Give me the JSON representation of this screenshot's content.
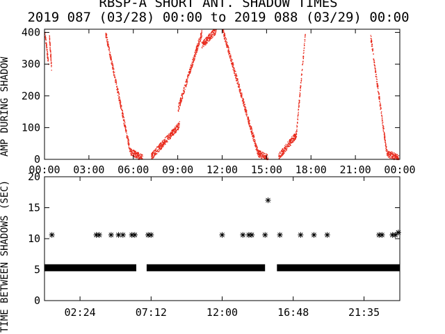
{
  "title_line1": "RBSP-A SHORT ANT. SHADOW TIMES",
  "title_line2": "2019 087 (03/28) 00:00 to 2019 088 (03/29) 00:00",
  "colors": {
    "top_points": "#e8281a",
    "bottom_points": "#000000",
    "axes": "#000000"
  },
  "chart_data": [
    {
      "type": "scatter",
      "ylabel": "AMP DURING SHADOW",
      "ylim": [
        0,
        410
      ],
      "xlim_hours": [
        0,
        24
      ],
      "xticks": [
        "00:00",
        "03:00",
        "06:00",
        "09:00",
        "12:00",
        "15:00",
        "18:00",
        "21:00",
        "00:00"
      ],
      "yticks": [
        "0",
        "100",
        "200",
        "300",
        "400"
      ],
      "point_style": "small dots",
      "bands": [
        {
          "t0": 0.0,
          "t1": 0.25,
          "y0": 400,
          "y1": 300
        },
        {
          "t0": 0.3,
          "t1": 0.45,
          "y0": 390,
          "y1": 290
        },
        {
          "t0": 4.1,
          "t1": 5.8,
          "y0": 400,
          "y1": 20
        },
        {
          "t0": 5.8,
          "t1": 6.6,
          "y0": 25,
          "y1": 5
        },
        {
          "t0": 7.2,
          "t1": 9.1,
          "y0": 10,
          "y1": 110
        },
        {
          "t0": 9.0,
          "t1": 10.6,
          "y0": 160,
          "y1": 400
        },
        {
          "t0": 10.6,
          "t1": 11.6,
          "y0": 360,
          "y1": 410
        },
        {
          "t0": 12.0,
          "t1": 14.4,
          "y0": 410,
          "y1": 20
        },
        {
          "t0": 14.4,
          "t1": 15.1,
          "y0": 20,
          "y1": 5
        },
        {
          "t0": 15.8,
          "t1": 17.0,
          "y0": 10,
          "y1": 80
        },
        {
          "t0": 17.0,
          "t1": 17.6,
          "y0": 90,
          "y1": 400
        },
        {
          "t0": 22.0,
          "t1": 23.1,
          "y0": 390,
          "y1": 20
        },
        {
          "t0": 23.1,
          "t1": 23.9,
          "y0": 20,
          "y1": 5
        }
      ]
    },
    {
      "type": "scatter",
      "ylabel": "TIME BETWEEN SHADOWS (SEC)",
      "ylim": [
        0,
        20
      ],
      "xlim_hours": [
        0,
        24
      ],
      "xticks": [
        "02:24",
        "07:12",
        "12:00",
        "16:48",
        "21:35"
      ],
      "yticks": [
        "0",
        "5",
        "10",
        "15",
        "20"
      ],
      "point_style": "asterisk",
      "baseline_value": 5.3,
      "baseline_segments": [
        [
          0.0,
          6.2
        ],
        [
          6.9,
          14.9
        ],
        [
          15.7,
          24.0
        ]
      ],
      "points": [
        {
          "x": 0.5,
          "y": 10.6
        },
        {
          "x": 3.5,
          "y": 10.6
        },
        {
          "x": 3.7,
          "y": 10.6
        },
        {
          "x": 4.5,
          "y": 10.6
        },
        {
          "x": 5.0,
          "y": 10.6
        },
        {
          "x": 5.3,
          "y": 10.6
        },
        {
          "x": 5.9,
          "y": 10.6
        },
        {
          "x": 6.1,
          "y": 10.6
        },
        {
          "x": 7.0,
          "y": 10.6
        },
        {
          "x": 7.2,
          "y": 10.6
        },
        {
          "x": 12.0,
          "y": 10.6
        },
        {
          "x": 13.4,
          "y": 10.6
        },
        {
          "x": 13.8,
          "y": 10.6
        },
        {
          "x": 14.0,
          "y": 10.6
        },
        {
          "x": 14.9,
          "y": 10.6
        },
        {
          "x": 15.1,
          "y": 16.2
        },
        {
          "x": 15.9,
          "y": 10.6
        },
        {
          "x": 17.3,
          "y": 10.6
        },
        {
          "x": 18.2,
          "y": 10.6
        },
        {
          "x": 19.1,
          "y": 10.6
        },
        {
          "x": 22.6,
          "y": 10.6
        },
        {
          "x": 22.8,
          "y": 10.6
        },
        {
          "x": 23.5,
          "y": 10.6
        },
        {
          "x": 23.7,
          "y": 10.6
        },
        {
          "x": 23.9,
          "y": 11.0
        }
      ]
    }
  ]
}
